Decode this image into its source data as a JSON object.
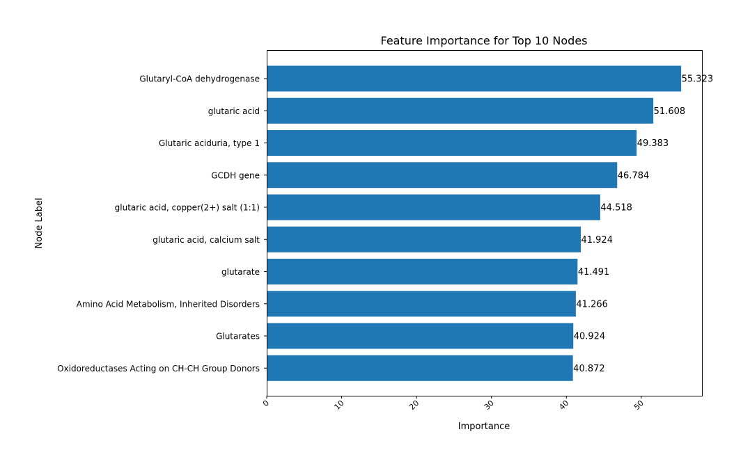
{
  "chart_data": {
    "type": "bar",
    "orientation": "horizontal",
    "title": "Feature Importance for Top 10 Nodes",
    "xlabel": "Importance",
    "ylabel": "Node Label",
    "xlim": [
      0,
      58.1
    ],
    "xticks": [
      0,
      10,
      20,
      30,
      40,
      50
    ],
    "grid": false,
    "bar_color": "#1f77b4",
    "categories": [
      "Glutaryl-CoA dehydrogenase",
      "glutaric acid",
      "Glutaric aciduria, type 1",
      "GCDH gene",
      "glutaric acid, copper(2+) salt (1:1)",
      "glutaric acid, calcium salt",
      "glutarate",
      "Amino Acid Metabolism, Inherited Disorders",
      "Glutarates",
      "Oxidoreductases Acting on CH-CH Group Donors"
    ],
    "values": [
      55.323,
      51.608,
      49.383,
      46.784,
      44.518,
      41.924,
      41.491,
      41.266,
      40.924,
      40.872
    ],
    "value_labels": [
      "55.323",
      "51.608",
      "49.383",
      "46.784",
      "44.518",
      "41.924",
      "41.491",
      "41.266",
      "40.924",
      "40.872"
    ]
  }
}
